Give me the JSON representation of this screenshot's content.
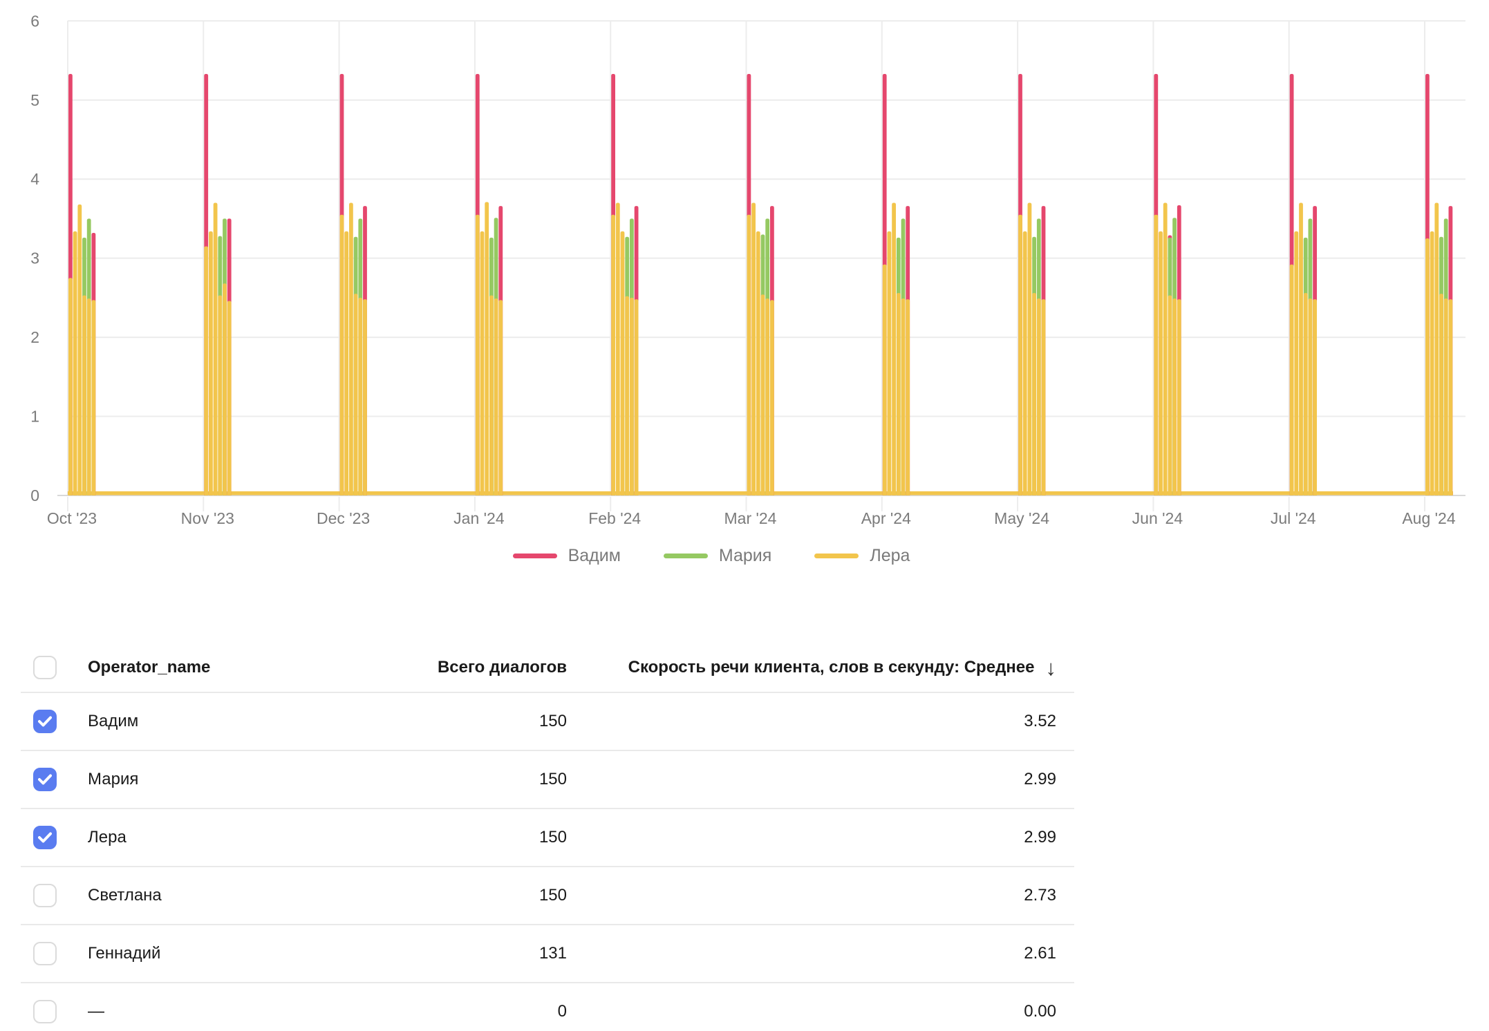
{
  "chart_data": {
    "type": "bar",
    "title": "",
    "xlabel": "",
    "ylabel": "",
    "ylim": [
      0,
      6
    ],
    "y_ticks": [
      0,
      1,
      2,
      3,
      4,
      5,
      6
    ],
    "grid": true,
    "legend_position": "bottom",
    "x_tick_labels": [
      "Oct '23",
      "Nov '23",
      "Dec '23",
      "Jan '24",
      "Feb '24",
      "Mar '24",
      "Apr '24",
      "May '24",
      "Jun '24",
      "Jul '24",
      "Aug '24"
    ],
    "series_colors": {
      "Вадим": "#E5476D",
      "Мария": "#95C962",
      "Лера": "#F2C54C"
    },
    "baseline_series": "Лера",
    "baseline_value": 0.03,
    "clusters": [
      {
        "month": "Oct '23",
        "bars": [
          [
            {
              "s": "Вадим",
              "v": 5.33
            },
            {
              "s": "Лера",
              "v": 2.75
            }
          ],
          [
            {
              "s": "Лера",
              "v": 3.34
            }
          ],
          [
            {
              "s": "Лера",
              "v": 3.68
            }
          ],
          [
            {
              "s": "Мария",
              "v": 3.26
            },
            {
              "s": "Лера",
              "v": 2.53
            }
          ],
          [
            {
              "s": "Мария",
              "v": 3.5
            },
            {
              "s": "Лера",
              "v": 2.49
            }
          ],
          [
            {
              "s": "Вадим",
              "v": 3.32
            },
            {
              "s": "Лера",
              "v": 2.47
            }
          ]
        ]
      },
      {
        "month": "Nov '23",
        "bars": [
          [
            {
              "s": "Вадим",
              "v": 5.33
            },
            {
              "s": "Лера",
              "v": 3.15
            }
          ],
          [
            {
              "s": "Лера",
              "v": 3.34
            }
          ],
          [
            {
              "s": "Лера",
              "v": 3.7
            }
          ],
          [
            {
              "s": "Мария",
              "v": 3.28
            },
            {
              "s": "Лера",
              "v": 2.53
            }
          ],
          [
            {
              "s": "Мария",
              "v": 3.5
            },
            {
              "s": "Лера",
              "v": 2.68
            }
          ],
          [
            {
              "s": "Вадим",
              "v": 3.5
            },
            {
              "s": "Лера",
              "v": 2.46
            }
          ]
        ]
      },
      {
        "month": "Dec '23",
        "bars": [
          [
            {
              "s": "Вадим",
              "v": 5.33
            },
            {
              "s": "Лера",
              "v": 3.55
            }
          ],
          [
            {
              "s": "Лера",
              "v": 3.34
            }
          ],
          [
            {
              "s": "Лера",
              "v": 3.7
            }
          ],
          [
            {
              "s": "Мария",
              "v": 3.27
            },
            {
              "s": "Лера",
              "v": 2.55
            }
          ],
          [
            {
              "s": "Мария",
              "v": 3.5
            },
            {
              "s": "Лера",
              "v": 2.5
            }
          ],
          [
            {
              "s": "Вадим",
              "v": 3.66
            },
            {
              "s": "Лера",
              "v": 2.48
            }
          ]
        ]
      },
      {
        "month": "Jan '24",
        "bars": [
          [
            {
              "s": "Вадим",
              "v": 5.33
            },
            {
              "s": "Лера",
              "v": 3.55
            }
          ],
          [
            {
              "s": "Лера",
              "v": 3.34
            }
          ],
          [
            {
              "s": "Лера",
              "v": 3.71
            }
          ],
          [
            {
              "s": "Мария",
              "v": 3.26
            },
            {
              "s": "Лера",
              "v": 2.53
            }
          ],
          [
            {
              "s": "Мария",
              "v": 3.51
            },
            {
              "s": "Лера",
              "v": 2.49
            }
          ],
          [
            {
              "s": "Вадим",
              "v": 3.66
            },
            {
              "s": "Лера",
              "v": 2.47
            }
          ]
        ]
      },
      {
        "month": "Feb '24",
        "bars": [
          [
            {
              "s": "Вадим",
              "v": 5.33
            },
            {
              "s": "Лера",
              "v": 3.55
            }
          ],
          [
            {
              "s": "Лера",
              "v": 3.7
            }
          ],
          [
            {
              "s": "Лера",
              "v": 3.34
            }
          ],
          [
            {
              "s": "Мария",
              "v": 3.27
            },
            {
              "s": "Лера",
              "v": 2.52
            }
          ],
          [
            {
              "s": "Мария",
              "v": 3.5
            },
            {
              "s": "Лера",
              "v": 2.5
            }
          ],
          [
            {
              "s": "Вадим",
              "v": 3.66
            },
            {
              "s": "Лера",
              "v": 2.48
            }
          ]
        ]
      },
      {
        "month": "Mar '24",
        "bars": [
          [
            {
              "s": "Вадим",
              "v": 5.33
            },
            {
              "s": "Лера",
              "v": 3.55
            }
          ],
          [
            {
              "s": "Лера",
              "v": 3.7
            }
          ],
          [
            {
              "s": "Лера",
              "v": 3.34
            }
          ],
          [
            {
              "s": "Мария",
              "v": 3.3
            },
            {
              "s": "Лера",
              "v": 2.54
            }
          ],
          [
            {
              "s": "Мария",
              "v": 3.5
            },
            {
              "s": "Лера",
              "v": 2.49
            }
          ],
          [
            {
              "s": "Вадим",
              "v": 3.66
            },
            {
              "s": "Лера",
              "v": 2.47
            }
          ]
        ]
      },
      {
        "month": "Apr '24",
        "bars": [
          [
            {
              "s": "Вадим",
              "v": 5.33
            },
            {
              "s": "Лера",
              "v": 2.92
            }
          ],
          [
            {
              "s": "Лера",
              "v": 3.34
            }
          ],
          [
            {
              "s": "Лера",
              "v": 3.7
            }
          ],
          [
            {
              "s": "Мария",
              "v": 3.26
            },
            {
              "s": "Лера",
              "v": 2.56
            }
          ],
          [
            {
              "s": "Мария",
              "v": 3.5
            },
            {
              "s": "Лера",
              "v": 2.49
            }
          ],
          [
            {
              "s": "Вадим",
              "v": 3.66
            },
            {
              "s": "Лера",
              "v": 2.48
            }
          ]
        ]
      },
      {
        "month": "May '24",
        "bars": [
          [
            {
              "s": "Вадим",
              "v": 5.33
            },
            {
              "s": "Лера",
              "v": 3.55
            }
          ],
          [
            {
              "s": "Лера",
              "v": 3.34
            }
          ],
          [
            {
              "s": "Лера",
              "v": 3.7
            }
          ],
          [
            {
              "s": "Мария",
              "v": 3.27
            },
            {
              "s": "Лера",
              "v": 2.56
            }
          ],
          [
            {
              "s": "Мария",
              "v": 3.5
            },
            {
              "s": "Лера",
              "v": 2.49
            }
          ],
          [
            {
              "s": "Вадим",
              "v": 3.66
            },
            {
              "s": "Лера",
              "v": 2.48
            }
          ]
        ]
      },
      {
        "month": "Jun '24",
        "bars": [
          [
            {
              "s": "Вадим",
              "v": 5.33
            },
            {
              "s": "Лера",
              "v": 3.55
            }
          ],
          [
            {
              "s": "Лера",
              "v": 3.34
            }
          ],
          [
            {
              "s": "Лера",
              "v": 3.7
            }
          ],
          [
            {
              "s": "Вадим",
              "v": 3.29
            },
            {
              "s": "Мария",
              "v": 3.26
            },
            {
              "s": "Лера",
              "v": 2.53
            }
          ],
          [
            {
              "s": "Мария",
              "v": 3.51
            },
            {
              "s": "Лера",
              "v": 2.49
            }
          ],
          [
            {
              "s": "Вадим",
              "v": 3.67
            },
            {
              "s": "Лера",
              "v": 2.48
            }
          ]
        ]
      },
      {
        "month": "Jul '24",
        "bars": [
          [
            {
              "s": "Вадим",
              "v": 5.33
            },
            {
              "s": "Лера",
              "v": 2.92
            }
          ],
          [
            {
              "s": "Лера",
              "v": 3.34
            }
          ],
          [
            {
              "s": "Лера",
              "v": 3.7
            }
          ],
          [
            {
              "s": "Мария",
              "v": 3.26
            },
            {
              "s": "Лера",
              "v": 2.56
            }
          ],
          [
            {
              "s": "Мария",
              "v": 3.5
            },
            {
              "s": "Лера",
              "v": 2.49
            }
          ],
          [
            {
              "s": "Вадим",
              "v": 3.66
            },
            {
              "s": "Лера",
              "v": 2.48
            }
          ]
        ]
      },
      {
        "month": "Aug '24",
        "bars": [
          [
            {
              "s": "Вадим",
              "v": 5.33
            },
            {
              "s": "Лера",
              "v": 3.25
            }
          ],
          [
            {
              "s": "Лера",
              "v": 3.34
            }
          ],
          [
            {
              "s": "Лера",
              "v": 3.7
            }
          ],
          [
            {
              "s": "Мария",
              "v": 3.27
            },
            {
              "s": "Лера",
              "v": 2.55
            }
          ],
          [
            {
              "s": "Мария",
              "v": 3.5
            },
            {
              "s": "Лера",
              "v": 2.49
            }
          ],
          [
            {
              "s": "Вадим",
              "v": 3.66
            },
            {
              "s": "Лера",
              "v": 2.48
            }
          ]
        ]
      }
    ]
  },
  "legend": {
    "items": [
      {
        "label": "Вадим",
        "color": "#E5476D"
      },
      {
        "label": "Мария",
        "color": "#95C962"
      },
      {
        "label": "Лера",
        "color": "#F2C54C"
      }
    ]
  },
  "table": {
    "header": {
      "operator": "Operator_name",
      "dialogs": "Всего диалогов",
      "speed": "Скорость речи клиента, слов в секунду: Среднее",
      "sort_icon": "↓"
    },
    "rows": [
      {
        "name": "Вадим",
        "dialogs": "150",
        "speed": "3.52",
        "checked": true
      },
      {
        "name": "Мария",
        "dialogs": "150",
        "speed": "2.99",
        "checked": true
      },
      {
        "name": "Лера",
        "dialogs": "150",
        "speed": "2.99",
        "checked": true
      },
      {
        "name": "Светлана",
        "dialogs": "150",
        "speed": "2.73",
        "checked": false
      },
      {
        "name": "Геннадий",
        "dialogs": "131",
        "speed": "2.61",
        "checked": false
      },
      {
        "name": "—",
        "dialogs": "0",
        "speed": "0.00",
        "checked": false
      }
    ]
  },
  "colors": {
    "grid": "#ECECEC",
    "axis_line": "#D8D8D8",
    "axis_text": "#7B7B7B",
    "checkbox_checked": "#5A7CF0"
  }
}
